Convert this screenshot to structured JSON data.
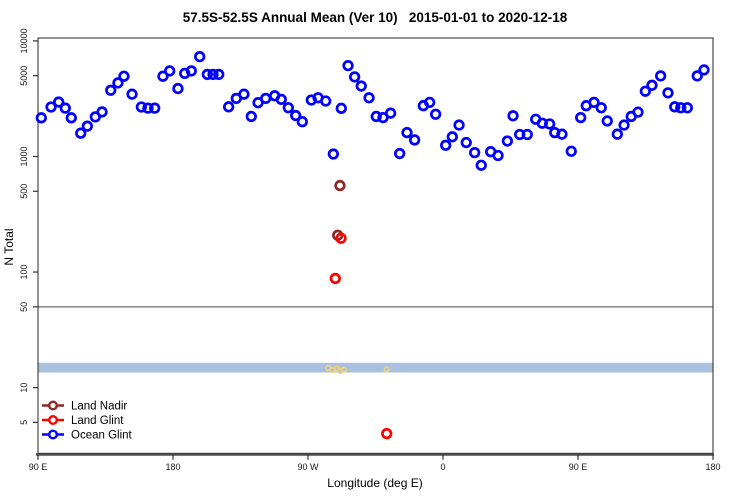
{
  "chart_data": {
    "type": "scatter",
    "title": "57.5S-52.5S Annual Mean (Ver 10)   2015-01-01 to 2020-12-18",
    "xlabel": "Longitude (deg E)",
    "ylabel": "N Total",
    "y_scale": "log",
    "grid": false,
    "x_axis": {
      "range": [
        0,
        450
      ],
      "ticks": [
        0,
        90,
        180,
        270,
        360,
        450
      ],
      "tick_labels": [
        "90 E",
        "180",
        "90 W",
        "0",
        "90 E",
        "180"
      ],
      "note": "axis spans 450 deg of longitude starting at 90E and wrapping past 180 twice"
    },
    "y_axis": {
      "range": [
        2.7,
        10600
      ],
      "ticks": [
        10000,
        5000,
        1000,
        500,
        100,
        50,
        10,
        5
      ],
      "tick_labels": [
        "10000",
        "5000",
        "1000",
        "500",
        "100",
        "50",
        "10",
        "5"
      ]
    },
    "reference_line": {
      "y": 50,
      "color": "#8f8f8f"
    },
    "band": {
      "y_from": 16.4,
      "y_to": 13.5,
      "color": "#a9c1de"
    },
    "legend": {
      "position": "bottom-left",
      "entries": [
        {
          "label": "Land Nadir",
          "color": "#8f2727"
        },
        {
          "label": "Land Glint",
          "color": "#ff0000"
        },
        {
          "label": "Ocean Glint",
          "color": "#0000ff"
        }
      ]
    },
    "series": [
      {
        "name": "Ocean Glint",
        "color": "#0000ff",
        "marker": "open-circle",
        "radius": 4.3,
        "stroke_width": 2.7,
        "points": [
          [
            2.2,
            2160
          ],
          [
            8.7,
            2680
          ],
          [
            13.8,
            2960
          ],
          [
            18.2,
            2620
          ],
          [
            22.2,
            2160
          ],
          [
            28.5,
            1590
          ],
          [
            32.9,
            1830
          ],
          [
            38.2,
            2200
          ],
          [
            42.7,
            2430
          ],
          [
            48.5,
            3740
          ],
          [
            53.3,
            4330
          ],
          [
            57.3,
            4950
          ],
          [
            62.7,
            3460
          ],
          [
            68.9,
            2680
          ],
          [
            73.3,
            2620
          ],
          [
            77.8,
            2620
          ],
          [
            83.3,
            4950
          ],
          [
            87.8,
            5500
          ],
          [
            93.3,
            3870
          ],
          [
            97.8,
            5240
          ],
          [
            102.2,
            5500
          ],
          [
            107.8,
            7310
          ],
          [
            112.9,
            5130
          ],
          [
            116.7,
            5130
          ],
          [
            120.5,
            5130
          ],
          [
            127.1,
            2690
          ],
          [
            132.2,
            3180
          ],
          [
            137.3,
            3460
          ],
          [
            142.2,
            2220
          ],
          [
            146.7,
            2920
          ],
          [
            151.8,
            3180
          ],
          [
            157.8,
            3350
          ],
          [
            162.2,
            3120
          ],
          [
            166.9,
            2640
          ],
          [
            171.8,
            2260
          ],
          [
            176.2,
            2000
          ],
          [
            182.2,
            3080
          ],
          [
            186.7,
            3220
          ],
          [
            191.8,
            3020
          ],
          [
            196.9,
            1050
          ],
          [
            202.2,
            2610
          ],
          [
            206.7,
            6110
          ],
          [
            211.1,
            4880
          ],
          [
            215.5,
            4070
          ],
          [
            220.7,
            3220
          ],
          [
            225.5,
            2220
          ],
          [
            230,
            2170
          ],
          [
            235.1,
            2370
          ],
          [
            241.1,
            1060
          ],
          [
            246,
            1610
          ],
          [
            251.1,
            1390
          ],
          [
            256.9,
            2750
          ],
          [
            261.1,
            2940
          ],
          [
            265.1,
            2320
          ],
          [
            271.8,
            1250
          ],
          [
            276.2,
            1480
          ],
          [
            280.7,
            1870
          ],
          [
            285.5,
            1320
          ],
          [
            291.1,
            1080
          ],
          [
            295.5,
            840
          ],
          [
            301.8,
            1100
          ],
          [
            306.7,
            1020
          ],
          [
            312.9,
            1360
          ],
          [
            316.7,
            2250
          ],
          [
            321.1,
            1550
          ],
          [
            326.2,
            1550
          ],
          [
            331.8,
            2100
          ],
          [
            336.2,
            1940
          ],
          [
            341.1,
            1910
          ],
          [
            344.5,
            1610
          ],
          [
            349.3,
            1560
          ],
          [
            355.5,
            1110
          ],
          [
            361.8,
            2170
          ],
          [
            365.5,
            2750
          ],
          [
            370.7,
            2940
          ],
          [
            375.5,
            2640
          ],
          [
            379.5,
            2030
          ],
          [
            386.2,
            1560
          ],
          [
            390.7,
            1870
          ],
          [
            395.5,
            2220
          ],
          [
            400,
            2420
          ],
          [
            404.9,
            3670
          ],
          [
            409.3,
            4130
          ],
          [
            415.1,
            4980
          ],
          [
            420,
            3550
          ],
          [
            424.5,
            2690
          ],
          [
            428.5,
            2640
          ],
          [
            432.9,
            2640
          ],
          [
            439.5,
            4980
          ],
          [
            444,
            5610
          ]
        ]
      },
      {
        "name": "Land Nadir",
        "color": "#8f2727",
        "marker": "open-circle",
        "radius": 4.3,
        "stroke_width": 2.7,
        "points": [
          [
            201.3,
            560
          ],
          [
            199.8,
            208
          ]
        ]
      },
      {
        "name": "Land Glint",
        "color": "#ff0000",
        "marker": "open-circle",
        "radius": 4.3,
        "stroke_width": 2.7,
        "points": [
          [
            202.0,
            196
          ],
          [
            198.2,
            88
          ],
          [
            232.5,
            4
          ]
        ]
      },
      {
        "name": "unlabeled-yellow",
        "color": "#f1d47c",
        "marker": "open-circle",
        "radius": 2.4,
        "stroke_width": 1.5,
        "points": [
          [
            193.5,
            14.8
          ],
          [
            196.5,
            14.2
          ],
          [
            199.0,
            14.6
          ],
          [
            201.5,
            13.9
          ],
          [
            204.0,
            14.3
          ],
          [
            232.5,
            14.4
          ]
        ]
      }
    ]
  }
}
